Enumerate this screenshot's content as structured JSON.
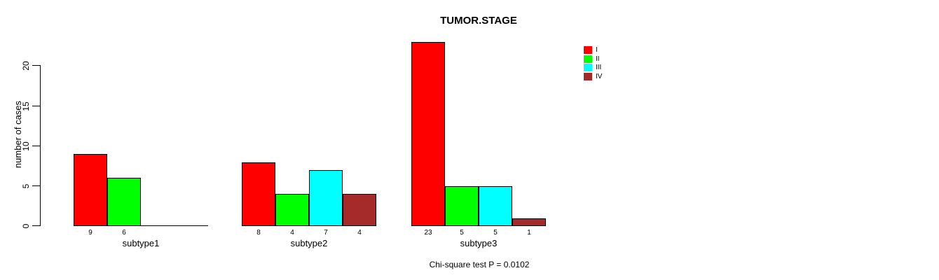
{
  "chart_data": {
    "type": "bar",
    "title": "TUMOR.STAGE",
    "xlabel": "",
    "ylabel": "number of cases",
    "annotation": "Chi-square test P = 0.0102",
    "ylim": [
      0,
      20
    ],
    "yticks": [
      0,
      5,
      10,
      15,
      20
    ],
    "categories": [
      "subtype1",
      "subtype2",
      "subtype3"
    ],
    "series": [
      {
        "name": "I",
        "color": "#ff0000",
        "values": [
          9,
          8,
          23
        ]
      },
      {
        "name": "II",
        "color": "#00ff00",
        "values": [
          6,
          4,
          5
        ]
      },
      {
        "name": "III",
        "color": "#00ffff",
        "values": [
          0,
          7,
          5
        ]
      },
      {
        "name": "IV",
        "color": "#a52a2a",
        "values": [
          0,
          4,
          1
        ]
      }
    ],
    "show_values_below_bars": true,
    "hide_zero_value_labels": true,
    "legend_position": "right",
    "grid": false,
    "background_color": "#ffffff",
    "axis_color": "#000000",
    "bar_border_color": "#000000"
  }
}
